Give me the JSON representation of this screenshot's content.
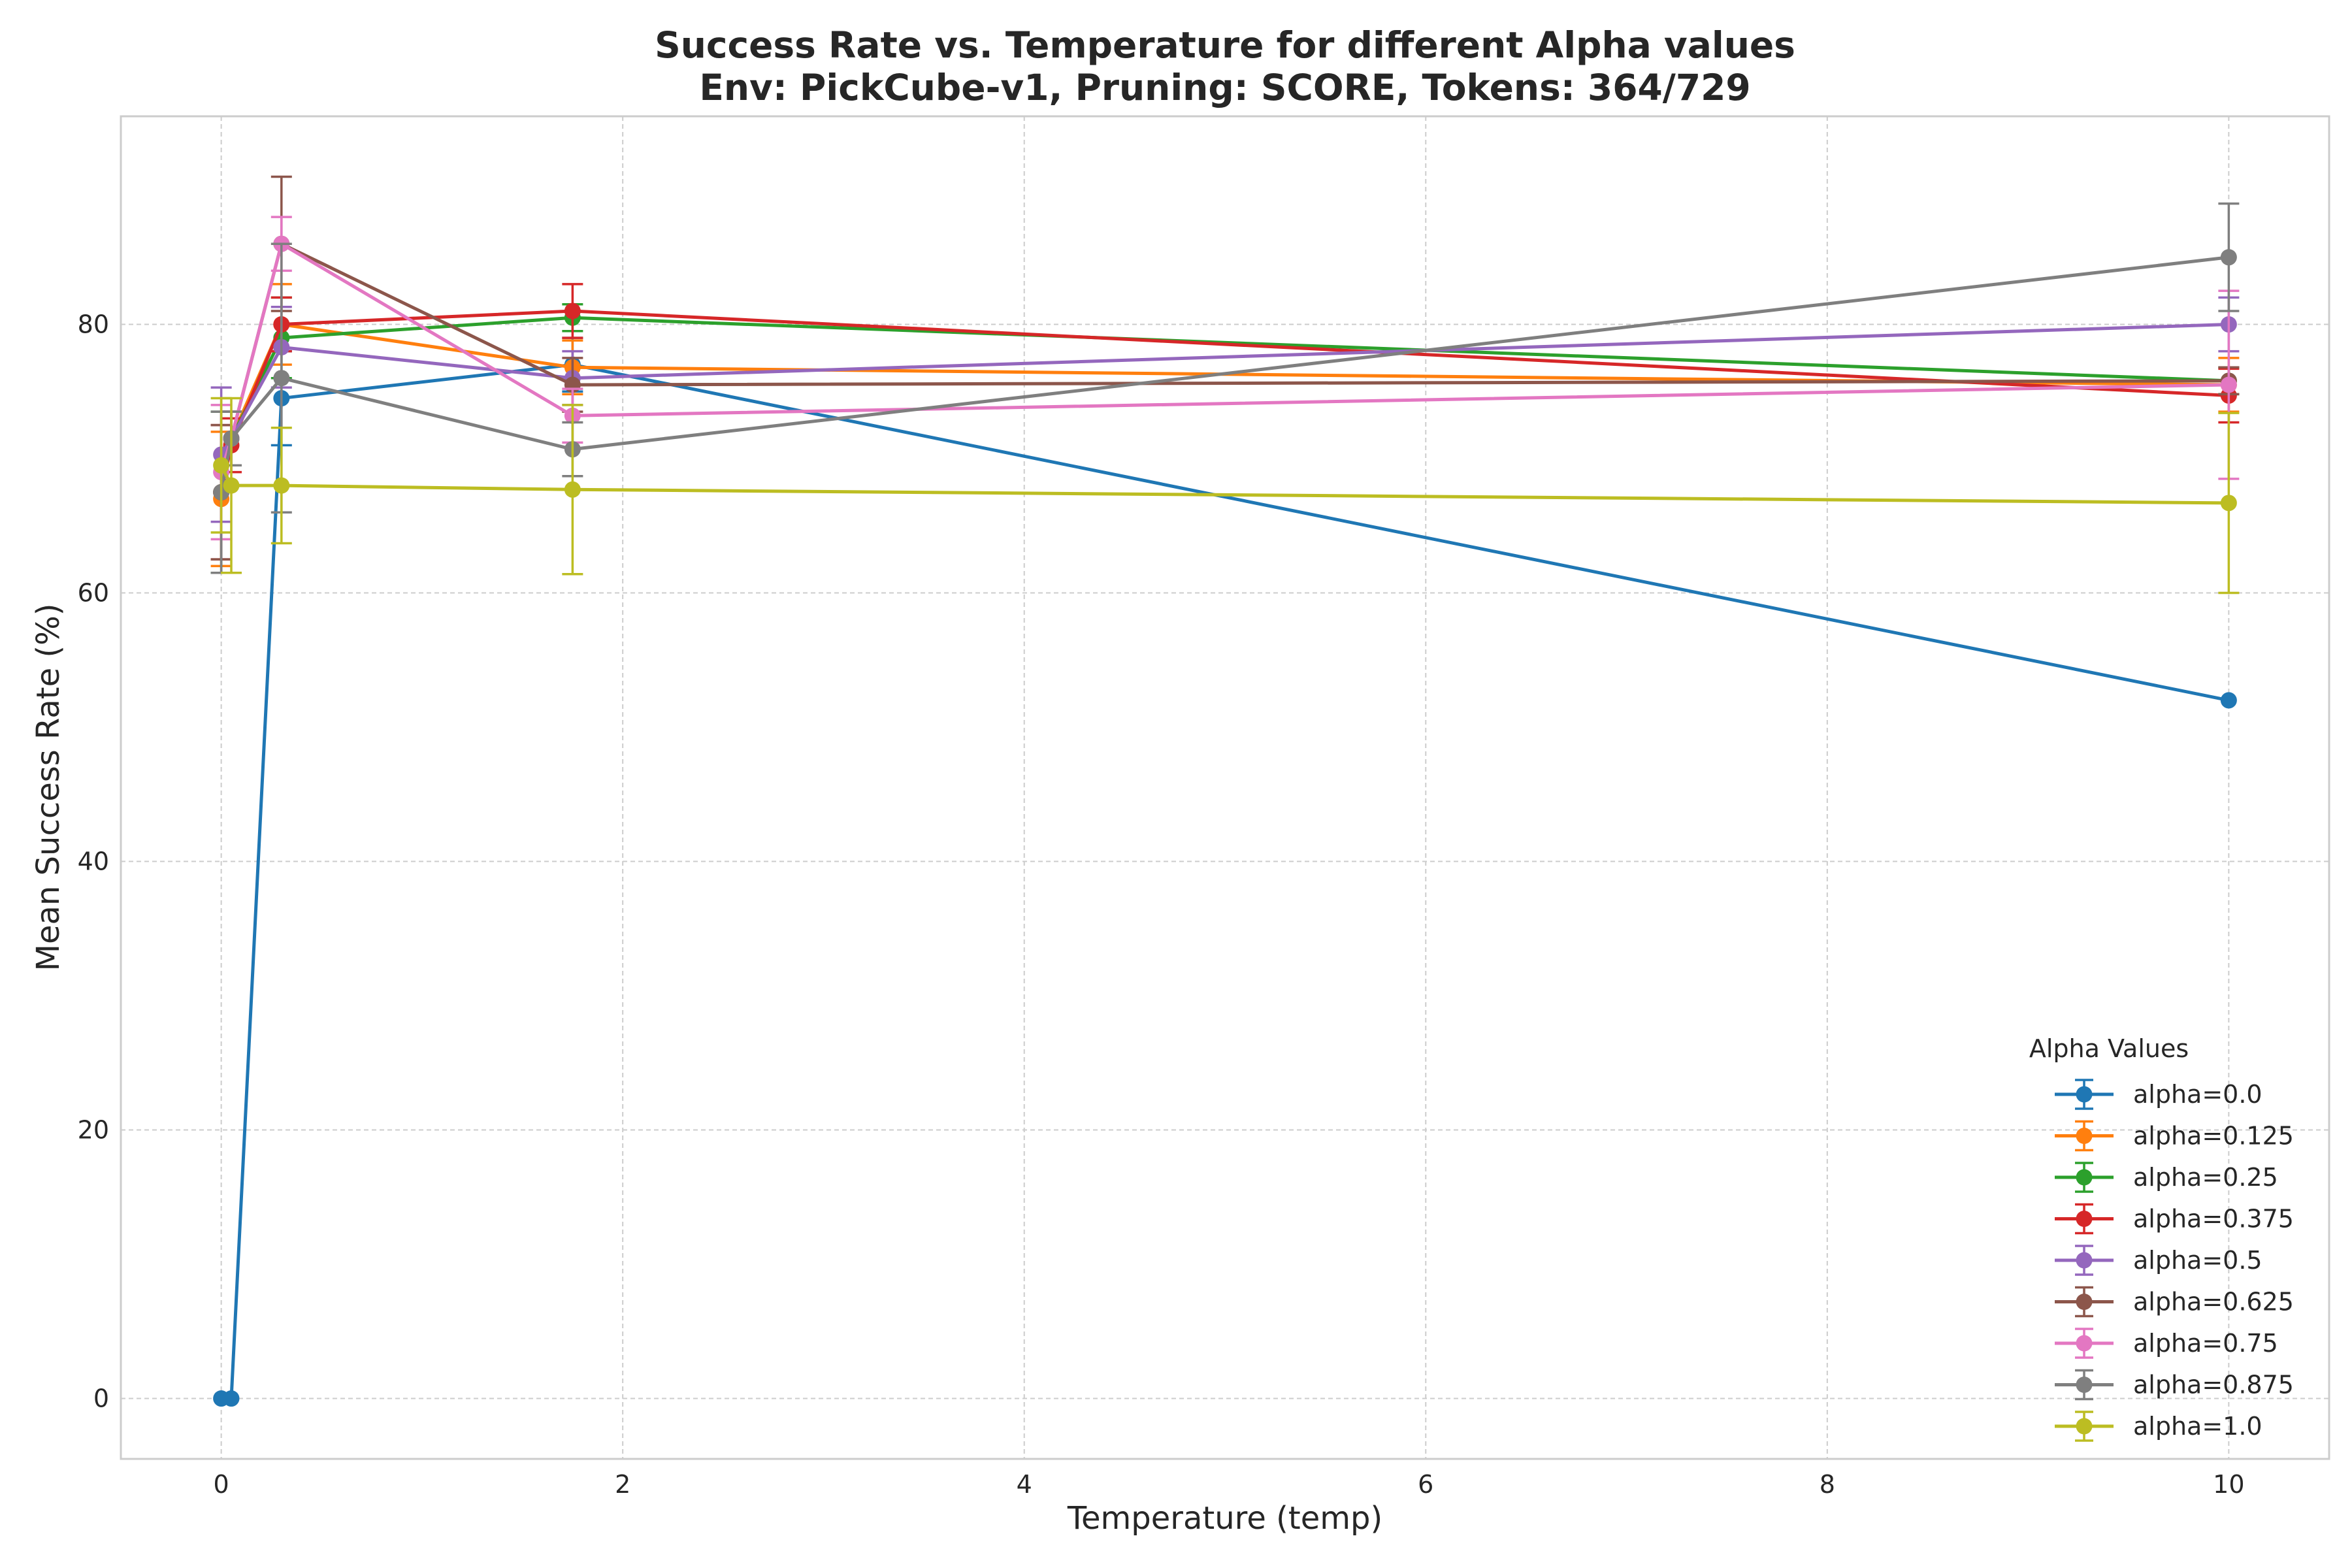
{
  "chart_data": {
    "type": "line",
    "title": "Success Rate vs. Temperature for different Alpha values",
    "subtitle": "Env: PickCube-v1, Pruning: SCORE, Tokens: 364/729",
    "xlabel": "Temperature (temp)",
    "ylabel": "Mean Success Rate (%)",
    "xlim": [
      -0.5,
      10.5
    ],
    "ylim": [
      -4.5,
      95.5
    ],
    "xticks": [
      0,
      2,
      4,
      6,
      8,
      10
    ],
    "yticks": [
      0,
      20,
      40,
      60,
      80
    ],
    "grid": true,
    "legend": {
      "title": "Alpha Values",
      "position": "lower right"
    },
    "series": [
      {
        "name": "alpha=0.0",
        "color": "#1f77b4",
        "x": [
          0.0,
          0.05,
          0.3,
          1.75,
          10.0
        ],
        "y": [
          0.0,
          0.0,
          74.5,
          77.0,
          52.0
        ],
        "err": [
          0,
          0,
          3.5,
          2.0,
          0
        ]
      },
      {
        "name": "alpha=0.125",
        "color": "#ff7f0e",
        "x": [
          0.0,
          0.05,
          0.3,
          1.75,
          10.0
        ],
        "y": [
          67.0,
          71.5,
          80.0,
          76.8,
          75.5
        ],
        "err": [
          5.0,
          2.0,
          3.0,
          2.0,
          2.0
        ]
      },
      {
        "name": "alpha=0.25",
        "color": "#2ca02c",
        "x": [
          0.0,
          0.05,
          0.3,
          1.75,
          10.0
        ],
        "y": [
          67.5,
          71.5,
          79.0,
          80.5,
          75.8
        ],
        "err": [
          6.0,
          2.0,
          3.0,
          1.0,
          1.0
        ]
      },
      {
        "name": "alpha=0.375",
        "color": "#d62728",
        "x": [
          0.0,
          0.05,
          0.3,
          1.75,
          10.0
        ],
        "y": [
          67.5,
          71.0,
          80.0,
          81.0,
          74.7
        ],
        "err": [
          5.0,
          2.0,
          2.0,
          2.0,
          2.0
        ]
      },
      {
        "name": "alpha=0.5",
        "color": "#9467bd",
        "x": [
          0.0,
          0.05,
          0.3,
          1.75,
          10.0
        ],
        "y": [
          70.3,
          71.5,
          78.3,
          76.0,
          80.0
        ],
        "err": [
          5.0,
          2.0,
          3.0,
          2.0,
          2.0
        ]
      },
      {
        "name": "alpha=0.625",
        "color": "#8c564b",
        "x": [
          0.0,
          0.05,
          0.3,
          1.75,
          10.0
        ],
        "y": [
          67.5,
          71.5,
          86.0,
          75.5,
          75.8
        ],
        "err": [
          5.0,
          2.0,
          5.0,
          2.0,
          1.0
        ]
      },
      {
        "name": "alpha=0.75",
        "color": "#e377c2",
        "x": [
          0.0,
          0.05,
          0.3,
          1.75,
          10.0
        ],
        "y": [
          69.0,
          71.5,
          86.0,
          73.2,
          75.5
        ],
        "err": [
          5.0,
          2.0,
          2.0,
          2.0,
          7.0
        ]
      },
      {
        "name": "alpha=0.875",
        "color": "#7f7f7f",
        "x": [
          0.0,
          0.05,
          0.3,
          1.75,
          10.0
        ],
        "y": [
          67.5,
          71.5,
          76.0,
          70.7,
          85.0
        ],
        "err": [
          6.0,
          2.0,
          10.0,
          2.0,
          4.0
        ]
      },
      {
        "name": "alpha=1.0",
        "color": "#bcbd22",
        "x": [
          0.0,
          0.05,
          0.3,
          1.75,
          10.0
        ],
        "y": [
          69.5,
          68.0,
          68.0,
          67.7,
          66.7
        ],
        "err": [
          5.0,
          6.5,
          4.3,
          6.3,
          6.7
        ]
      }
    ]
  }
}
